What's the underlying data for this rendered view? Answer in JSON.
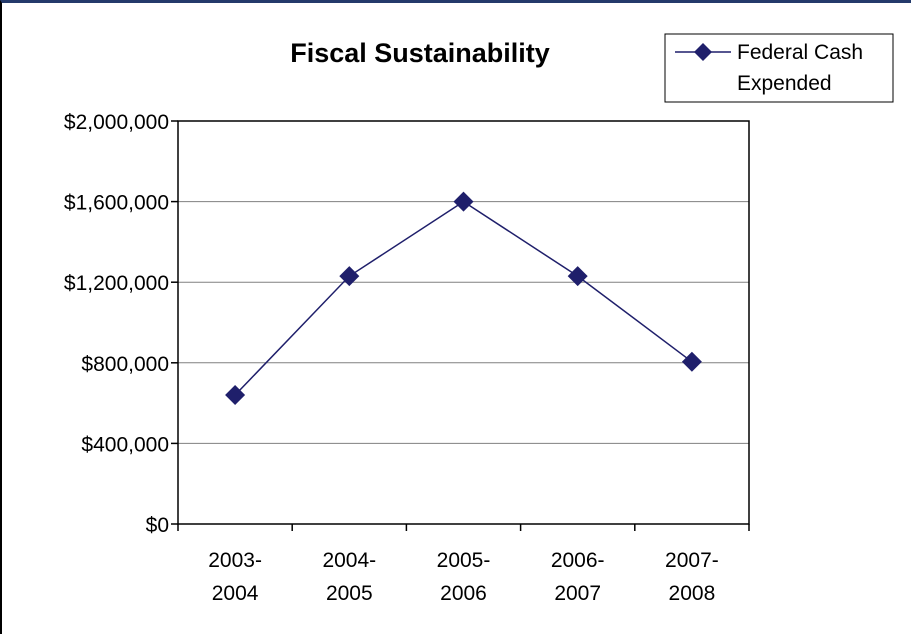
{
  "chart_data": {
    "type": "line",
    "title": "Fiscal Sustainability",
    "categories": [
      [
        "2003-",
        "2004"
      ],
      [
        "2004-",
        "2005"
      ],
      [
        "2005-",
        "2006"
      ],
      [
        "2006-",
        "2007"
      ],
      [
        "2007-",
        "2008"
      ]
    ],
    "series": [
      {
        "name": "Federal Cash Expended",
        "name_lines": [
          "Federal Cash",
          "Expended"
        ],
        "values": [
          640000,
          1230000,
          1600000,
          1230000,
          805000
        ],
        "color": "#1f1f6b",
        "marker": "diamond"
      }
    ],
    "ylim": [
      0,
      2000000
    ],
    "yticks": [
      0,
      400000,
      800000,
      1200000,
      1600000,
      2000000
    ],
    "ytick_labels": [
      "$0",
      "$400,000",
      "$800,000",
      "$1,200,000",
      "$1,600,000",
      "$2,000,000"
    ],
    "xlabel": "",
    "ylabel": "",
    "grid": true,
    "legend_position": "top-right"
  }
}
